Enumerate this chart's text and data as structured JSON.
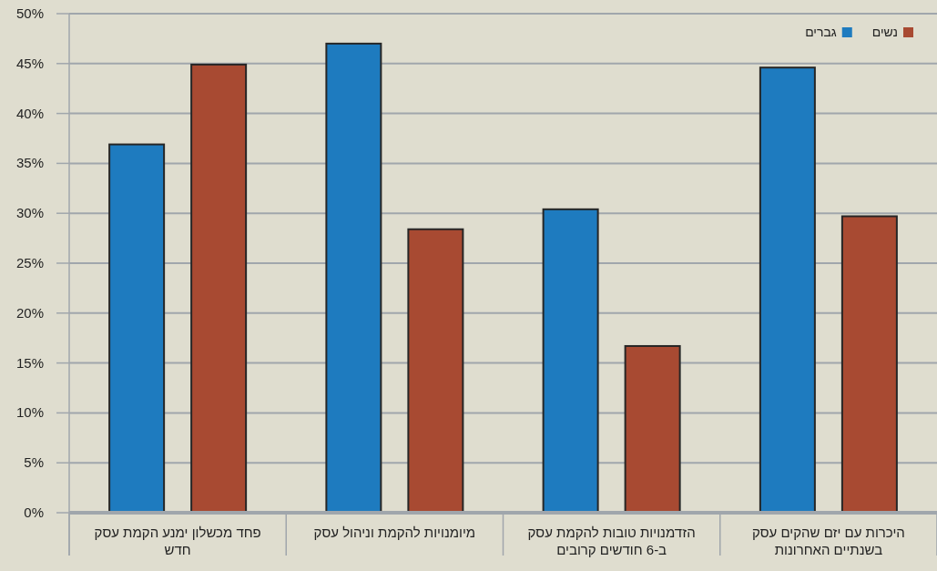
{
  "chart_data": {
    "type": "bar",
    "categories": [
      "פחד מכשלון ימנע הקמת עסק חדש",
      "מיומנויות להקמת וניהול עסק",
      "הזדמנויות טובות להקמת עסק ב-6 חודשים קרובים",
      "היכרות עם יזם שהקים עסק בשנתיים האחרונות"
    ],
    "series": [
      {
        "name": "גברים",
        "color": "#1e7bbf",
        "values": [
          36.9,
          47.0,
          30.4,
          44.6
        ]
      },
      {
        "name": "נשים",
        "color": "#a84a32",
        "values": [
          44.9,
          28.4,
          16.7,
          29.7
        ]
      }
    ],
    "ylim": [
      0,
      50
    ],
    "yticks": [
      {
        "value": 0,
        "label": "0%"
      },
      {
        "value": 5,
        "label": "5%"
      },
      {
        "value": 10,
        "label": "10%"
      },
      {
        "value": 15,
        "label": "15%"
      },
      {
        "value": 20,
        "label": "20%"
      },
      {
        "value": 25,
        "label": "25%"
      },
      {
        "value": 30,
        "label": "30%"
      },
      {
        "value": 35,
        "label": "35%"
      },
      {
        "value": 40,
        "label": "40%"
      },
      {
        "value": 45,
        "label": "45%"
      },
      {
        "value": 50,
        "label": "50%"
      }
    ],
    "grid": "y",
    "legend": "top right"
  }
}
